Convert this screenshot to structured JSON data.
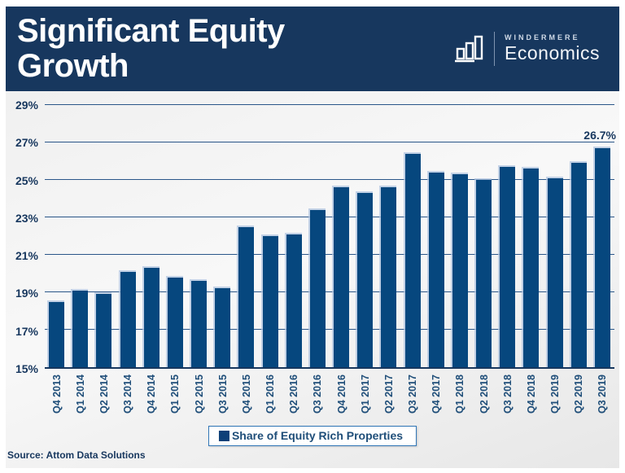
{
  "header": {
    "title": "Significant Equity Growth",
    "brand_top": "WINDERMERE",
    "brand_bottom": "Economics"
  },
  "legend": {
    "label": "Share of Equity Rich Properties"
  },
  "source": "Source: Attom Data Solutions",
  "colors": {
    "header_bg": "#17375E",
    "bar": "#06477E",
    "gridline": "#2A5689",
    "axis_text": "#17375E",
    "legend_border": "#2E74B5"
  },
  "chart_data": {
    "type": "bar",
    "title": "Significant Equity Growth",
    "series_name": "Share of Equity Rich Properties",
    "categories": [
      "Q4 2013",
      "Q1 2014",
      "Q2 2014",
      "Q3 2014",
      "Q4 2014",
      "Q1 2015",
      "Q2 2015",
      "Q3 2015",
      "Q4 2015",
      "Q1 2016",
      "Q2 2016",
      "Q3 2016",
      "Q4 2016",
      "Q1 2017",
      "Q2 2017",
      "Q3 2017",
      "Q4 2017",
      "Q1 2018",
      "Q2 2018",
      "Q3 2018",
      "Q4 2018",
      "Q1 2019",
      "Q2 2019",
      "Q3 2019"
    ],
    "values": [
      18.5,
      19.1,
      18.9,
      20.1,
      20.3,
      19.8,
      19.6,
      19.2,
      22.5,
      22.0,
      22.1,
      23.4,
      24.6,
      24.3,
      24.6,
      26.4,
      25.4,
      25.3,
      25.0,
      25.7,
      25.6,
      25.1,
      25.9,
      26.7
    ],
    "xlabel": "",
    "ylabel": "",
    "ylim": [
      15,
      29
    ],
    "ytick_values": [
      15,
      17,
      19,
      21,
      23,
      25,
      27,
      29
    ],
    "ytick_labels": [
      "15%",
      "17%",
      "19%",
      "21%",
      "23%",
      "25%",
      "27%",
      "29%"
    ],
    "grid": true,
    "legend_position": "bottom",
    "annotations": [
      {
        "category": "Q3 2019",
        "value": 26.7,
        "text": "26.7%"
      }
    ]
  }
}
